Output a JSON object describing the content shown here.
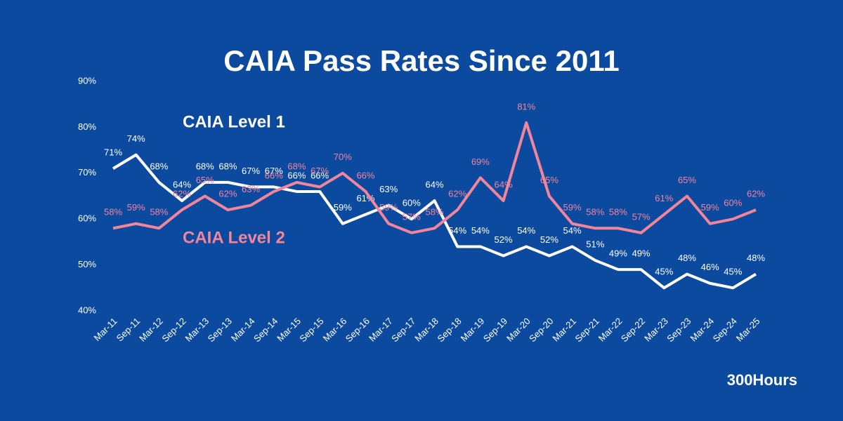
{
  "chart_data": {
    "type": "line",
    "title": "CAIA Pass Rates Since 2011",
    "brand": "300Hours",
    "categories": [
      "Mar-11",
      "Sep-11",
      "Mar-12",
      "Sep-12",
      "Mar-13",
      "Sep-13",
      "Mar-14",
      "Sep-14",
      "Mar-15",
      "Sep-15",
      "Mar-16",
      "Sep-16",
      "Mar-17",
      "Sep-17",
      "Mar-18",
      "Sep-18",
      "Mar-19",
      "Sep-19",
      "Mar-20",
      "Sep-20",
      "Mar-21",
      "Sep-21",
      "Mar-22",
      "Sep-22",
      "Mar-23",
      "Sep-23",
      "Mar-24",
      "Sep-24",
      "Mar-25"
    ],
    "series": [
      {
        "name": "CAIA Level 1",
        "color": "#ffffff",
        "values": [
          71,
          74,
          68,
          64,
          68,
          68,
          67,
          67,
          66,
          66,
          59,
          61,
          63,
          60,
          64,
          54,
          54,
          52,
          54,
          52,
          54,
          51,
          49,
          49,
          45,
          48,
          46,
          45,
          48
        ],
        "value_labels": [
          "71%",
          "74%",
          "68%",
          "64%",
          "68%",
          "68%",
          "67%",
          "67%",
          "66%",
          "66%",
          "59%",
          "61%",
          "63%",
          "60%",
          "64%",
          "54%",
          "54%",
          "52%",
          "54%",
          "52%",
          "54%",
          "51%",
          "49%",
          "49%",
          "45%",
          "48%",
          "46%",
          "45%",
          "48%"
        ]
      },
      {
        "name": "CAIA Level 2",
        "color": "#f2859a",
        "values": [
          58,
          59,
          58,
          62,
          65,
          62,
          63,
          66,
          68,
          67,
          70,
          66,
          59,
          57,
          58,
          62,
          69,
          64,
          81,
          65,
          59,
          58,
          58,
          57,
          61,
          65,
          59,
          60,
          62
        ],
        "value_labels": [
          "58%",
          "59%",
          "58%",
          "62%",
          "65%",
          "62%",
          "63%",
          "66%",
          "68%",
          "67%",
          "70%",
          "66%",
          "59%",
          "57%",
          "58%",
          "62%",
          "69%",
          "64%",
          "81%",
          "65%",
          "59%",
          "58%",
          "58%",
          "57%",
          "61%",
          "65%",
          "59%",
          "60%",
          "62%"
        ]
      }
    ],
    "ylim": [
      40,
      90
    ],
    "yticks": [
      {
        "value": 40,
        "label": "40%"
      },
      {
        "value": 50,
        "label": "50%"
      },
      {
        "value": 60,
        "label": "60%"
      },
      {
        "value": 70,
        "label": "70%"
      },
      {
        "value": 80,
        "label": "80%"
      },
      {
        "value": 90,
        "label": "90%"
      }
    ],
    "grid": false
  }
}
